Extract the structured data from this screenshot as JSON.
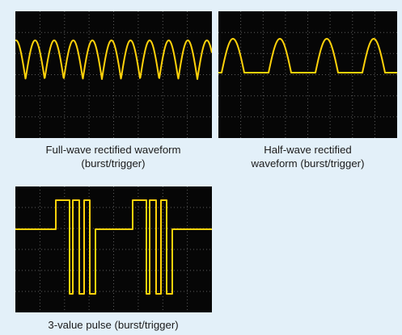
{
  "colors": {
    "background": "#e3f0f9",
    "screen": "#060606",
    "grid": "#5d5d5d",
    "trace": "#ffd20a",
    "caption_text": "#1b1b1b"
  },
  "panels": [
    {
      "id": "full-wave",
      "waveform": "full-wave-rectified",
      "caption_line1": "Full-wave rectified waveform",
      "caption_line2": "(burst/trigger)"
    },
    {
      "id": "half-wave",
      "waveform": "half-wave-rectified",
      "caption_line1": "Half-wave rectified",
      "caption_line2": "waveform (burst/trigger)"
    },
    {
      "id": "pulse",
      "waveform": "3-value-pulse",
      "caption_line1": "3-value pulse (burst/trigger)"
    }
  ]
}
